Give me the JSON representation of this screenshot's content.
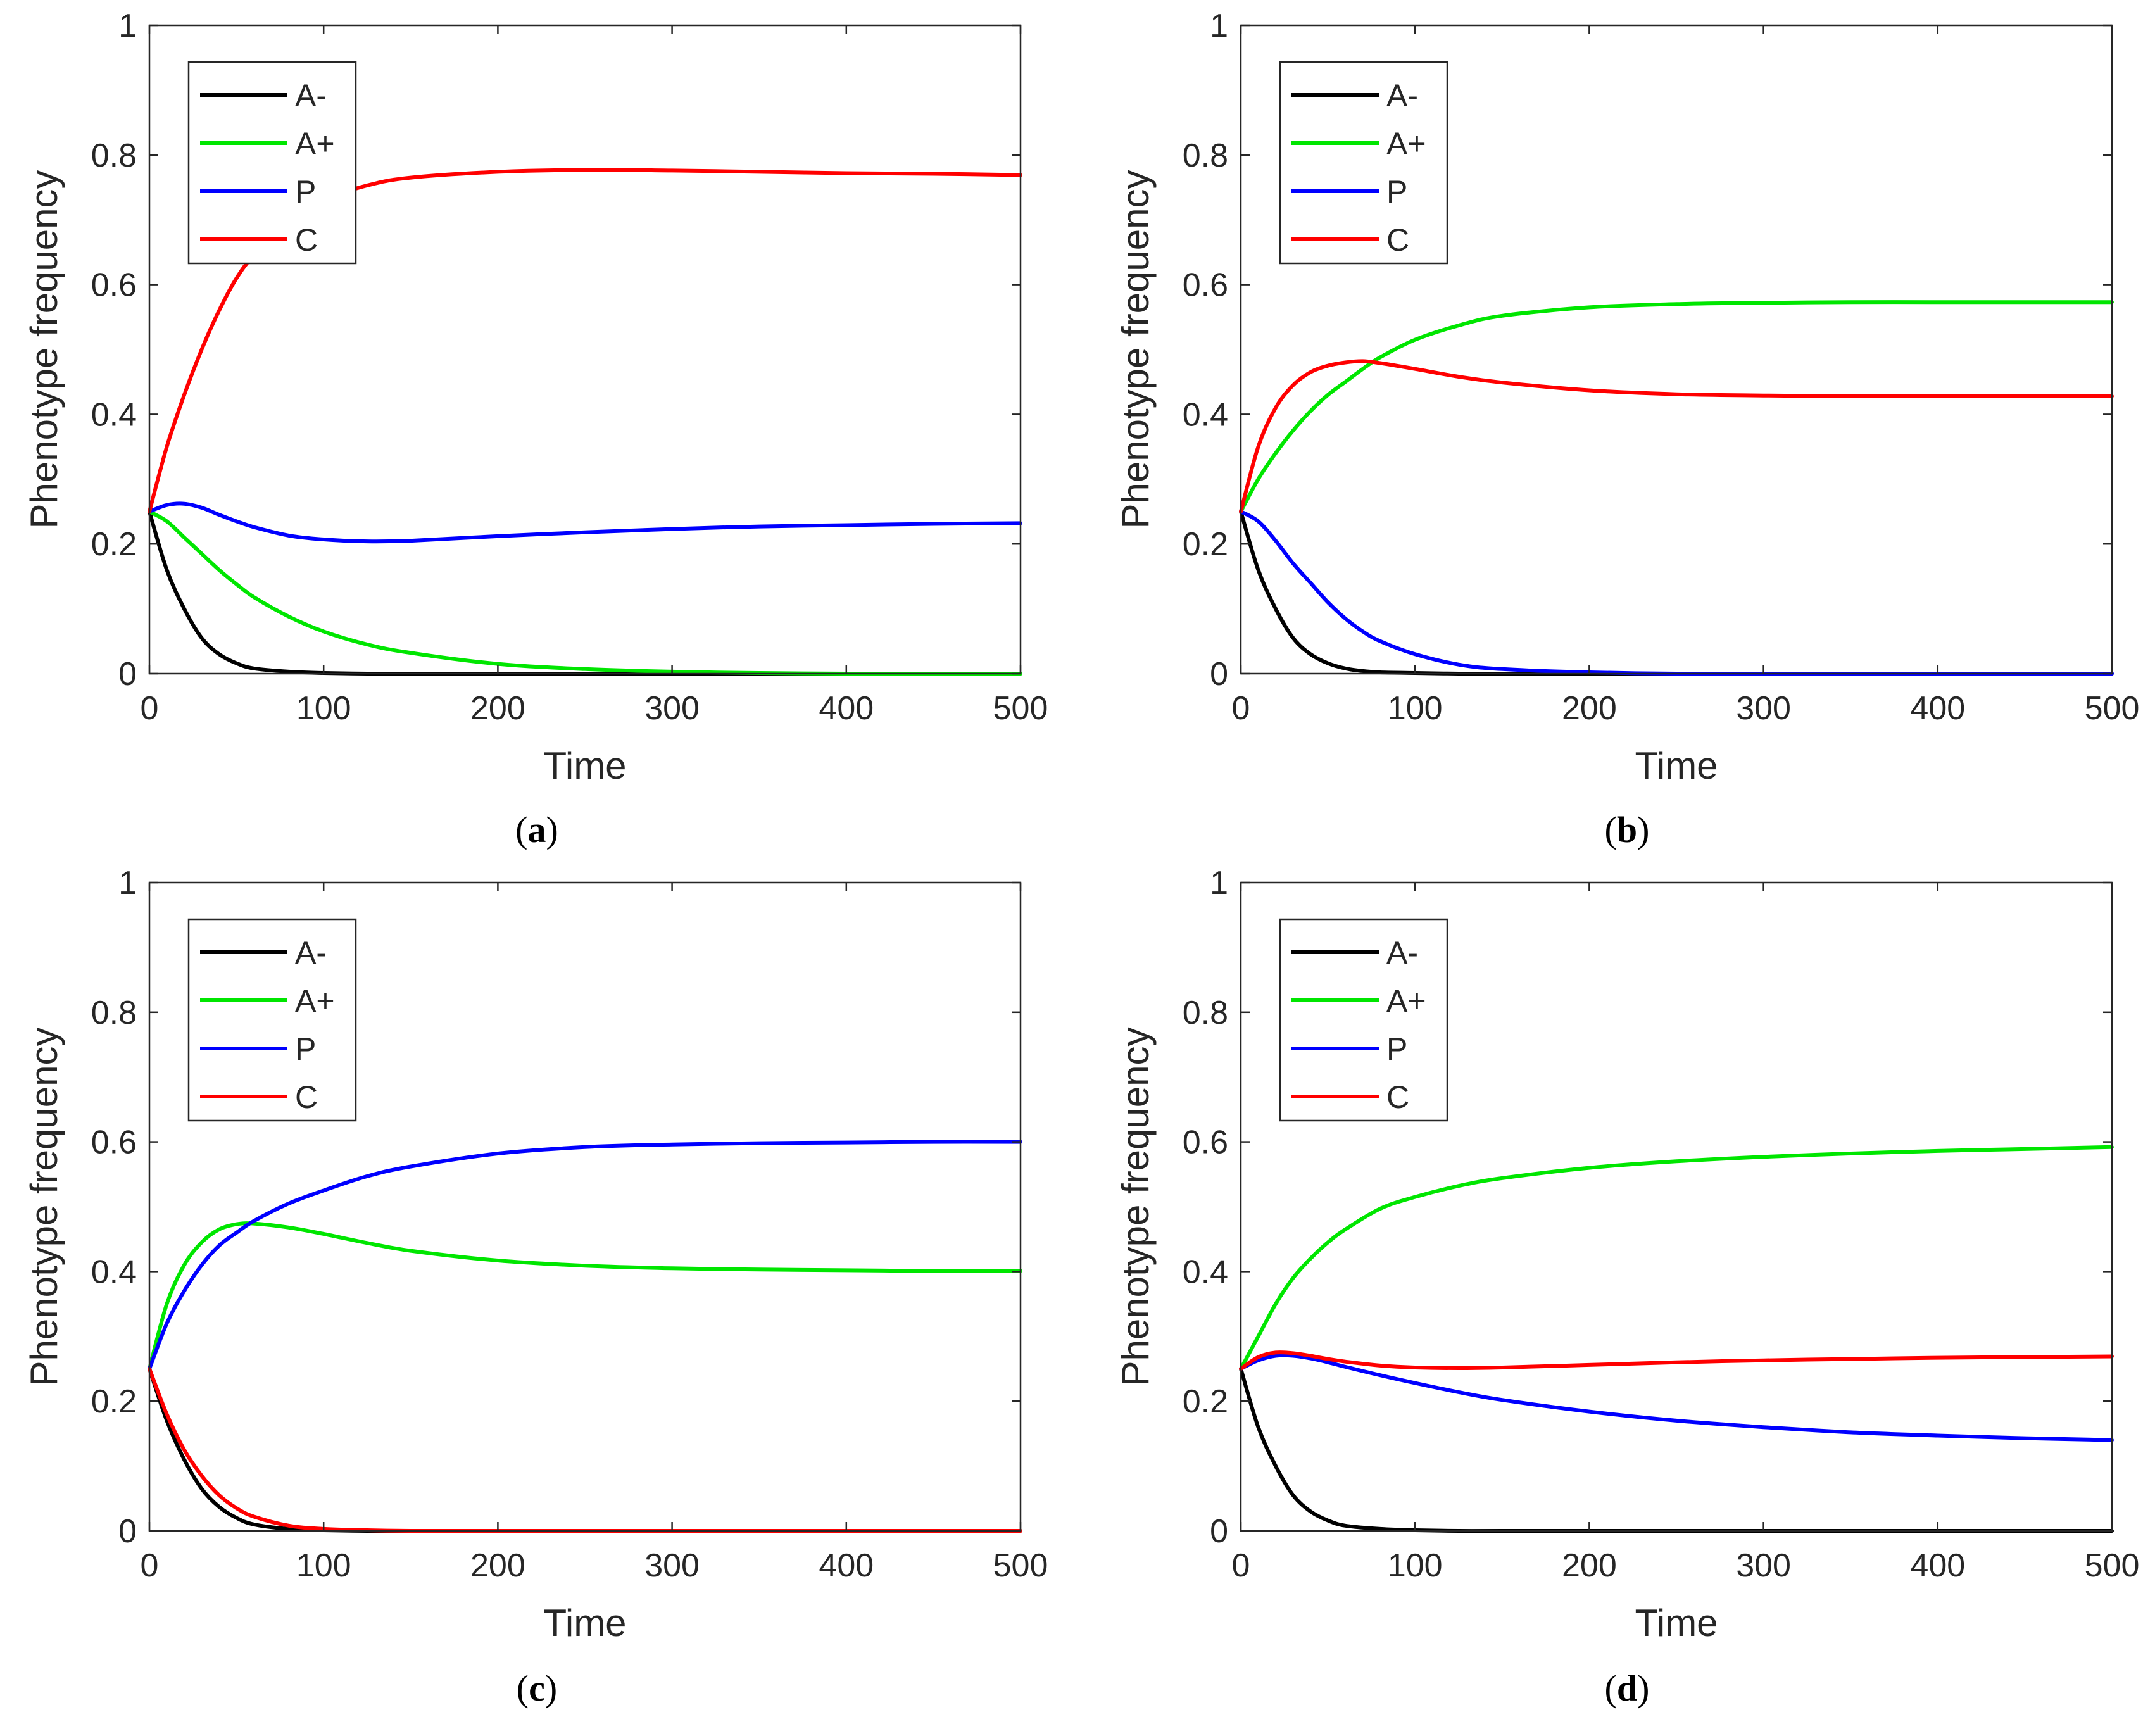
{
  "figure": {
    "colors": {
      "A-": "#000000",
      "A+": "#00e600",
      "P": "#0000ff",
      "C": "#ff0000",
      "axis": "#262626"
    }
  },
  "chart_data": [
    {
      "id": "a",
      "type": "line",
      "panel_label": "a",
      "title": "",
      "xlabel": "Time",
      "ylabel": "Phenotype frequency",
      "xlim": [
        0,
        500
      ],
      "ylim": [
        0,
        1
      ],
      "xticks": [
        0,
        100,
        200,
        300,
        400,
        500
      ],
      "yticks": [
        0,
        0.2,
        0.4,
        0.6,
        0.8,
        1
      ],
      "ytick_labels": [
        "0",
        "0.2",
        "0.4",
        "0.6",
        "0.8",
        "1"
      ],
      "legend": [
        "A-",
        "A+",
        "P",
        "C"
      ],
      "legend_position": "top-left",
      "x": [
        0,
        10,
        20,
        30,
        40,
        50,
        60,
        80,
        100,
        125,
        150,
        200,
        250,
        300,
        350,
        400,
        450,
        500
      ],
      "series": [
        {
          "name": "A-",
          "values": [
            0.25,
            0.16,
            0.1,
            0.055,
            0.03,
            0.016,
            0.008,
            0.003,
            0.001,
            0.0,
            0.0,
            0.0,
            0.0,
            0.0,
            0.0,
            0.0,
            0.0,
            0.0
          ]
        },
        {
          "name": "A+",
          "values": [
            0.25,
            0.235,
            0.21,
            0.185,
            0.16,
            0.138,
            0.118,
            0.088,
            0.065,
            0.045,
            0.032,
            0.015,
            0.007,
            0.003,
            0.001,
            0.0,
            0.0,
            0.0
          ]
        },
        {
          "name": "P",
          "values": [
            0.25,
            0.26,
            0.262,
            0.256,
            0.245,
            0.235,
            0.226,
            0.213,
            0.207,
            0.204,
            0.205,
            0.212,
            0.218,
            0.223,
            0.227,
            0.229,
            0.231,
            0.232
          ]
        },
        {
          "name": "C",
          "values": [
            0.25,
            0.35,
            0.43,
            0.5,
            0.56,
            0.61,
            0.645,
            0.695,
            0.73,
            0.753,
            0.765,
            0.774,
            0.777,
            0.776,
            0.774,
            0.772,
            0.771,
            0.769
          ]
        }
      ]
    },
    {
      "id": "b",
      "type": "line",
      "panel_label": "b",
      "title": "",
      "xlabel": "Time",
      "ylabel": "Phenotype frequency",
      "xlim": [
        0,
        500
      ],
      "ylim": [
        0,
        1
      ],
      "xticks": [
        0,
        100,
        200,
        300,
        400,
        500
      ],
      "yticks": [
        0,
        0.2,
        0.4,
        0.6,
        0.8,
        1
      ],
      "ytick_labels": [
        "0",
        "0.2",
        "0.4",
        "0.6",
        "0.8",
        "1"
      ],
      "legend": [
        "A-",
        "A+",
        "P",
        "C"
      ],
      "legend_position": "top-left",
      "x": [
        0,
        10,
        20,
        30,
        40,
        50,
        60,
        70,
        80,
        100,
        125,
        150,
        200,
        250,
        300,
        350,
        400,
        450,
        500
      ],
      "series": [
        {
          "name": "A-",
          "values": [
            0.25,
            0.16,
            0.1,
            0.055,
            0.03,
            0.016,
            0.008,
            0.004,
            0.002,
            0.001,
            0.0,
            0.0,
            0.0,
            0.0,
            0.0,
            0.0,
            0.0,
            0.0,
            0.0
          ]
        },
        {
          "name": "A+",
          "values": [
            0.25,
            0.3,
            0.34,
            0.375,
            0.405,
            0.43,
            0.45,
            0.47,
            0.488,
            0.515,
            0.537,
            0.552,
            0.565,
            0.57,
            0.572,
            0.573,
            0.573,
            0.573,
            0.573
          ]
        },
        {
          "name": "P",
          "values": [
            0.25,
            0.235,
            0.205,
            0.17,
            0.14,
            0.11,
            0.085,
            0.065,
            0.05,
            0.03,
            0.014,
            0.007,
            0.002,
            0.0,
            0.0,
            0.0,
            0.0,
            0.0,
            0.0
          ]
        },
        {
          "name": "C",
          "values": [
            0.25,
            0.35,
            0.41,
            0.445,
            0.465,
            0.475,
            0.48,
            0.482,
            0.479,
            0.47,
            0.458,
            0.449,
            0.437,
            0.431,
            0.429,
            0.428,
            0.428,
            0.428,
            0.428
          ]
        }
      ]
    },
    {
      "id": "c",
      "type": "line",
      "panel_label": "c",
      "title": "",
      "xlabel": "Time",
      "ylabel": "Phenotype frequency",
      "xlim": [
        0,
        500
      ],
      "ylim": [
        0,
        1
      ],
      "xticks": [
        0,
        100,
        200,
        300,
        400,
        500
      ],
      "yticks": [
        0,
        0.2,
        0.4,
        0.6,
        0.8,
        1
      ],
      "ytick_labels": [
        "0",
        "0.2",
        "0.4",
        "0.6",
        "0.8",
        "1"
      ],
      "legend": [
        "A-",
        "A+",
        "P",
        "C"
      ],
      "legend_position": "top-left",
      "x": [
        0,
        10,
        20,
        30,
        40,
        50,
        60,
        80,
        100,
        125,
        150,
        200,
        250,
        300,
        350,
        400,
        450,
        500
      ],
      "series": [
        {
          "name": "A-",
          "values": [
            0.25,
            0.17,
            0.11,
            0.065,
            0.037,
            0.02,
            0.01,
            0.003,
            0.001,
            0.0,
            0.0,
            0.0,
            0.0,
            0.0,
            0.0,
            0.0,
            0.0,
            0.0
          ]
        },
        {
          "name": "A+",
          "values": [
            0.25,
            0.35,
            0.41,
            0.445,
            0.465,
            0.473,
            0.474,
            0.468,
            0.458,
            0.444,
            0.432,
            0.417,
            0.409,
            0.405,
            0.403,
            0.402,
            0.401,
            0.401
          ]
        },
        {
          "name": "P",
          "values": [
            0.25,
            0.32,
            0.37,
            0.41,
            0.44,
            0.46,
            0.478,
            0.505,
            0.525,
            0.547,
            0.562,
            0.582,
            0.592,
            0.596,
            0.598,
            0.599,
            0.6,
            0.6
          ]
        },
        {
          "name": "C",
          "values": [
            0.25,
            0.18,
            0.125,
            0.085,
            0.055,
            0.035,
            0.022,
            0.008,
            0.003,
            0.001,
            0.0,
            0.0,
            0.0,
            0.0,
            0.0,
            0.0,
            0.0,
            0.0
          ]
        }
      ]
    },
    {
      "id": "d",
      "type": "line",
      "panel_label": "d",
      "title": "",
      "xlabel": "Time",
      "ylabel": "Phenotype frequency",
      "xlim": [
        0,
        500
      ],
      "ylim": [
        0,
        1
      ],
      "xticks": [
        0,
        100,
        200,
        300,
        400,
        500
      ],
      "yticks": [
        0,
        0.2,
        0.4,
        0.6,
        0.8,
        1
      ],
      "ytick_labels": [
        "0",
        "0.2",
        "0.4",
        "0.6",
        "0.8",
        "1"
      ],
      "legend": [
        "A-",
        "A+",
        "P",
        "C"
      ],
      "legend_position": "top-left",
      "x": [
        0,
        10,
        20,
        30,
        40,
        50,
        60,
        80,
        100,
        125,
        150,
        200,
        250,
        300,
        350,
        400,
        450,
        500
      ],
      "series": [
        {
          "name": "A-",
          "values": [
            0.25,
            0.16,
            0.1,
            0.055,
            0.03,
            0.016,
            0.008,
            0.003,
            0.001,
            0.0,
            0.0,
            0.0,
            0.0,
            0.0,
            0.0,
            0.0,
            0.0,
            0.0
          ]
        },
        {
          "name": "A+",
          "values": [
            0.25,
            0.3,
            0.35,
            0.39,
            0.42,
            0.445,
            0.465,
            0.497,
            0.515,
            0.532,
            0.544,
            0.56,
            0.57,
            0.577,
            0.582,
            0.586,
            0.589,
            0.592
          ]
        },
        {
          "name": "P",
          "values": [
            0.25,
            0.263,
            0.27,
            0.27,
            0.266,
            0.26,
            0.253,
            0.24,
            0.228,
            0.214,
            0.202,
            0.184,
            0.17,
            0.16,
            0.152,
            0.147,
            0.143,
            0.14
          ]
        },
        {
          "name": "C",
          "values": [
            0.25,
            0.268,
            0.275,
            0.274,
            0.27,
            0.265,
            0.261,
            0.255,
            0.252,
            0.251,
            0.252,
            0.256,
            0.26,
            0.263,
            0.265,
            0.267,
            0.268,
            0.269
          ]
        }
      ]
    }
  ]
}
